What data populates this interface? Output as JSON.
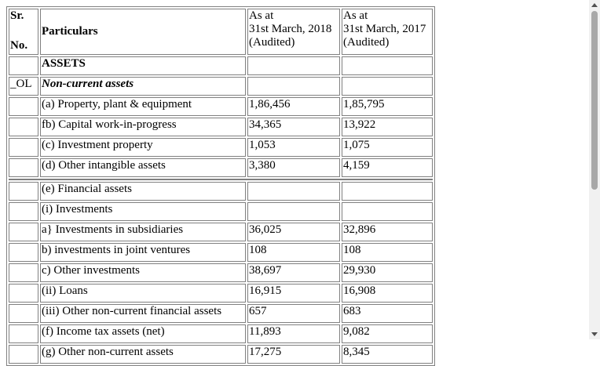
{
  "header": {
    "sr_line1": "Sr.",
    "sr_line2": "No.",
    "particulars": "Particulars",
    "col1": [
      "As at",
      "31st March, 2018",
      "(Audited)"
    ],
    "col2": [
      "As at",
      "31st March, 2017",
      "(Audited)"
    ]
  },
  "rows": [
    {
      "sr": "",
      "particular": "ASSETS",
      "style": "bold",
      "v2018": "",
      "v2017": ""
    },
    {
      "sr": "_OL",
      "particular": "Non-current assets",
      "style": "bi",
      "v2018": "",
      "v2017": ""
    },
    {
      "sr": "",
      "particular": "(a) Property, plant & equipment",
      "style": "",
      "v2018": "1,86,456",
      "v2017": "1,85,795"
    },
    {
      "sr": "",
      "particular": "fb) Capital work-in-progress",
      "style": "",
      "v2018": "34,365",
      "v2017": "13,922"
    },
    {
      "sr": "",
      "particular": "(c) Investment property",
      "style": "",
      "v2018": "1,053",
      "v2017": "1,075"
    },
    {
      "sr": "",
      "particular": "(d) Other intangible assets",
      "style": "",
      "v2018": "3,380",
      "v2017": "4,159"
    },
    {
      "sr": "",
      "particular": "(e) Financial assets",
      "style": "",
      "v2018": "",
      "v2017": ""
    },
    {
      "sr": "",
      "particular": "(i) Investments",
      "style": "",
      "v2018": "",
      "v2017": ""
    },
    {
      "sr": "",
      "particular": "a} Investments in subsidiaries",
      "style": "",
      "v2018": "36,025",
      "v2017": "32,896"
    },
    {
      "sr": "",
      "particular": "b) investments in joint ventures",
      "style": "",
      "v2018": "108",
      "v2017": "108"
    },
    {
      "sr": "",
      "particular": "c) Other investments",
      "style": "",
      "v2018": "38,697",
      "v2017": "29,930"
    },
    {
      "sr": "",
      "particular": "(ii) Loans",
      "style": "",
      "v2018": "16,915",
      "v2017": "16,908"
    },
    {
      "sr": "",
      "particular": "(iii) Other non-current financial assets",
      "style": "",
      "v2018": "657",
      "v2017": "683"
    },
    {
      "sr": "",
      "particular": "(f) Income tax assets (net)",
      "style": "",
      "v2018": "11,893",
      "v2017": "9,082"
    },
    {
      "sr": "",
      "particular": "(g) Other non-current assets",
      "style": "",
      "v2018": "17,275",
      "v2017": "8,345"
    }
  ]
}
